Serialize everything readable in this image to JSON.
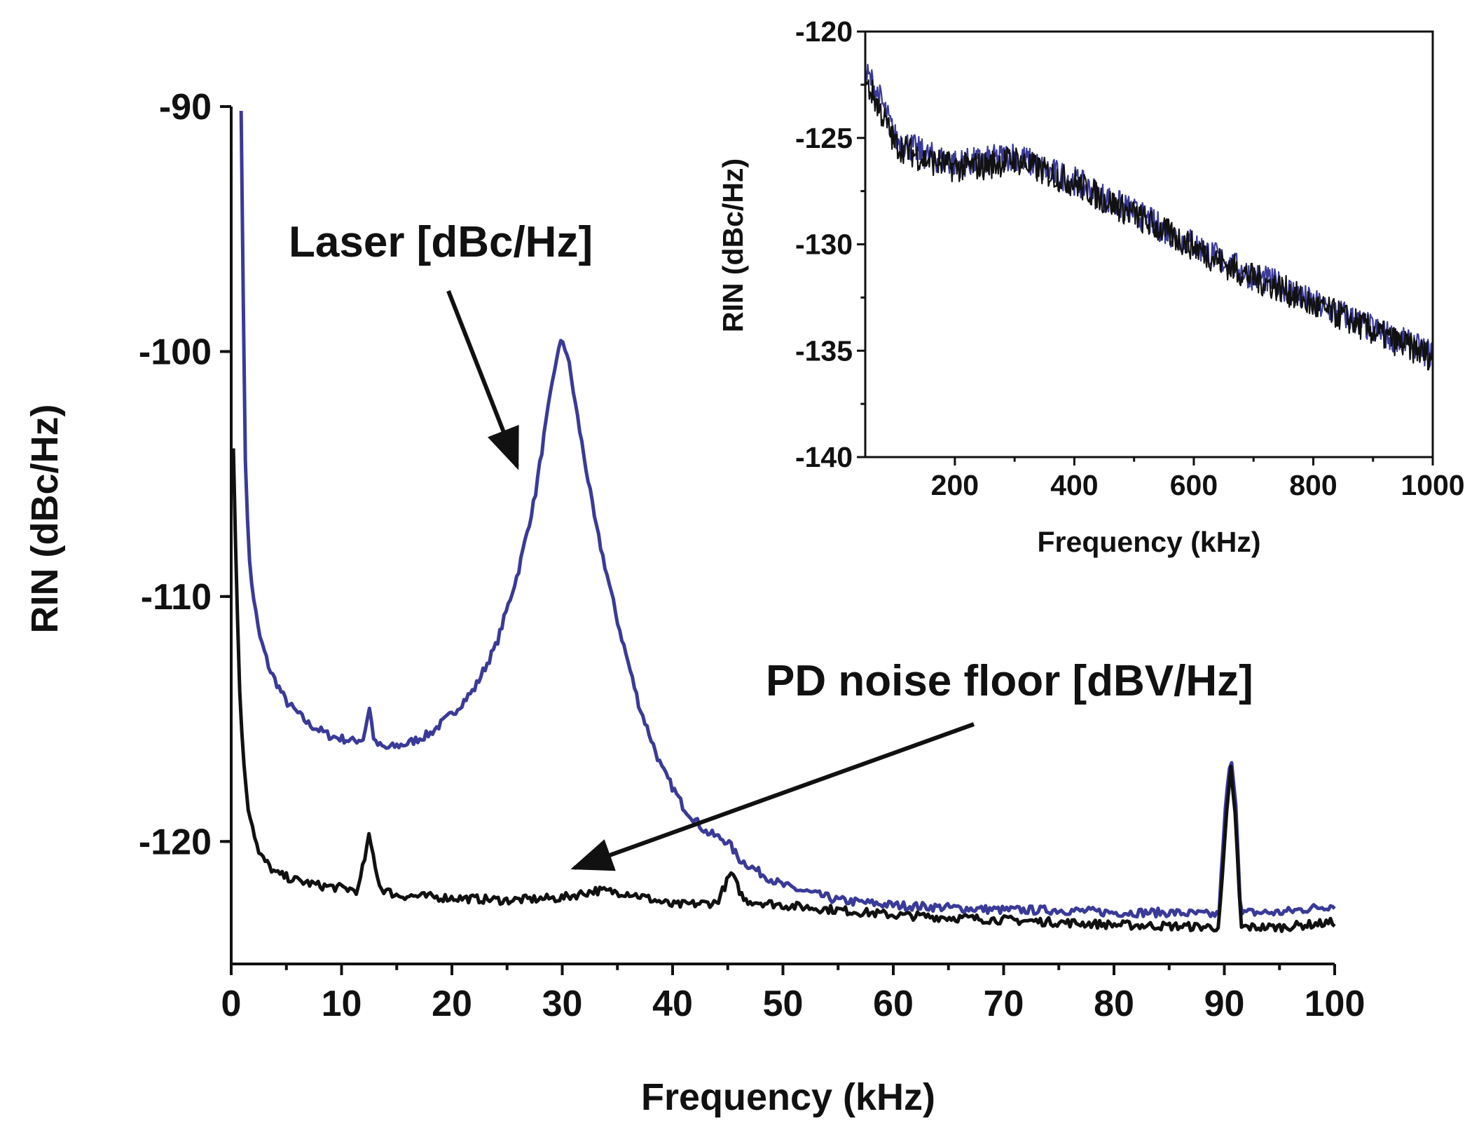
{
  "chart_data": [
    {
      "id": "main",
      "type": "line",
      "title": "",
      "xlabel": "Frequency (kHz)",
      "ylabel": "RIN (dBc/Hz)",
      "xlim": [
        0,
        100
      ],
      "ylim": [
        -125,
        -90
      ],
      "xticks": [
        0,
        10,
        20,
        30,
        40,
        50,
        60,
        70,
        80,
        90,
        100
      ],
      "xtick_labels": [
        "0",
        "10",
        "20",
        "30",
        "40",
        "50",
        "60",
        "70",
        "80",
        "90",
        "100"
      ],
      "yticks": [
        -90,
        -100,
        -110,
        -120
      ],
      "ytick_labels": [
        "-90",
        "-100",
        "-110",
        "-120"
      ],
      "grid": false,
      "series": [
        {
          "name": "Laser [dBc/Hz]",
          "color": "#3a3a98",
          "x": [
            0.9,
            1.0,
            1.3,
            1.7,
            2.5,
            3.5,
            5.0,
            7.0,
            9.0,
            11.0,
            12.0,
            12.5,
            13.0,
            14.0,
            16.0,
            18.0,
            20.0,
            22.0,
            24.0,
            26.0,
            27.5,
            28.5,
            29.5,
            30.0,
            30.5,
            31.5,
            33.0,
            35.0,
            37.0,
            39.0,
            41.0,
            43.0,
            45.0,
            46.0,
            48.0,
            50.0,
            55.0,
            60.0,
            65.0,
            70.0,
            75.0,
            80.0,
            85.0,
            89.5,
            90.2,
            90.6,
            91.0,
            91.5,
            92.0,
            95.0,
            100.0
          ],
          "y": [
            -90.0,
            -95.0,
            -105.0,
            -109.0,
            -111.5,
            -113.0,
            -114.3,
            -115.2,
            -115.7,
            -115.9,
            -115.8,
            -114.5,
            -116.0,
            -116.2,
            -116.0,
            -115.6,
            -114.8,
            -113.8,
            -112.0,
            -109.0,
            -106.0,
            -103.0,
            -100.2,
            -99.5,
            -100.2,
            -103.0,
            -107.0,
            -111.0,
            -114.5,
            -117.0,
            -118.6,
            -119.6,
            -120.0,
            -120.7,
            -121.3,
            -121.8,
            -122.4,
            -122.6,
            -122.7,
            -122.8,
            -122.8,
            -122.9,
            -122.9,
            -123.0,
            -118.0,
            -116.7,
            -118.0,
            -123.0,
            -122.9,
            -122.9,
            -122.6
          ]
        },
        {
          "name": "PD noise floor [dBV/Hz]",
          "color": "#111111",
          "x": [
            0.2,
            0.4,
            0.7,
            1.0,
            1.5,
            2.5,
            4.0,
            6.0,
            8.0,
            10.0,
            11.5,
            12.5,
            13.5,
            15.0,
            20.0,
            25.0,
            30.0,
            33.0,
            36.0,
            40.0,
            44.0,
            45.3,
            46.5,
            50.0,
            60.0,
            70.0,
            80.0,
            89.5,
            90.2,
            90.6,
            91.0,
            91.5,
            95.0,
            100.0
          ],
          "y": [
            -104.0,
            -108.0,
            -113.0,
            -116.0,
            -118.5,
            -120.5,
            -121.3,
            -121.6,
            -121.8,
            -121.9,
            -122.0,
            -119.8,
            -121.9,
            -122.2,
            -122.3,
            -122.4,
            -122.3,
            -122.0,
            -122.1,
            -122.6,
            -122.5,
            -121.3,
            -122.4,
            -122.6,
            -123.0,
            -123.2,
            -123.4,
            -123.5,
            -119.0,
            -117.0,
            -119.0,
            -123.5,
            -123.5,
            -123.3
          ]
        }
      ],
      "annotations": [
        {
          "text": "Laser [dBc/Hz]"
        },
        {
          "text": "PD noise floor [dBV/Hz]"
        }
      ]
    },
    {
      "id": "inset",
      "type": "line",
      "title": "",
      "xlabel": "Frequency (kHz)",
      "ylabel": "RIN (dBc/Hz)",
      "xlim": [
        50,
        1000
      ],
      "ylim": [
        -140,
        -120
      ],
      "xticks": [
        200,
        400,
        600,
        800,
        1000
      ],
      "xtick_labels": [
        "200",
        "400",
        "600",
        "800",
        "1000"
      ],
      "yticks": [
        -120,
        -125,
        -130,
        -135,
        -140
      ],
      "ytick_labels": [
        "-120",
        "-125",
        "-130",
        "-135",
        "-140"
      ],
      "grid": false,
      "series": [
        {
          "name": "Laser",
          "color": "#3a3a98",
          "x": [
            50,
            60,
            80,
            100,
            150,
            200,
            250,
            300,
            350,
            400,
            450,
            500,
            550,
            600,
            650,
            700,
            750,
            800,
            850,
            900,
            950,
            1000
          ],
          "y": [
            -122.0,
            -122.3,
            -123.5,
            -125.0,
            -125.8,
            -126.2,
            -126.1,
            -125.8,
            -126.5,
            -127.0,
            -127.8,
            -128.5,
            -129.3,
            -130.0,
            -130.8,
            -131.5,
            -132.0,
            -132.8,
            -133.3,
            -134.0,
            -134.6,
            -135.2
          ]
        },
        {
          "name": "PD noise floor",
          "color": "#111111",
          "x": [
            50,
            60,
            80,
            100,
            150,
            200,
            250,
            300,
            350,
            400,
            450,
            500,
            550,
            600,
            650,
            700,
            750,
            800,
            850,
            900,
            950,
            1000
          ],
          "y": [
            -122.5,
            -122.8,
            -124.0,
            -125.3,
            -126.0,
            -126.4,
            -126.3,
            -126.0,
            -126.6,
            -127.1,
            -127.9,
            -128.6,
            -129.4,
            -130.1,
            -130.9,
            -131.6,
            -132.1,
            -132.9,
            -133.4,
            -134.1,
            -134.7,
            -135.3
          ]
        }
      ]
    }
  ]
}
